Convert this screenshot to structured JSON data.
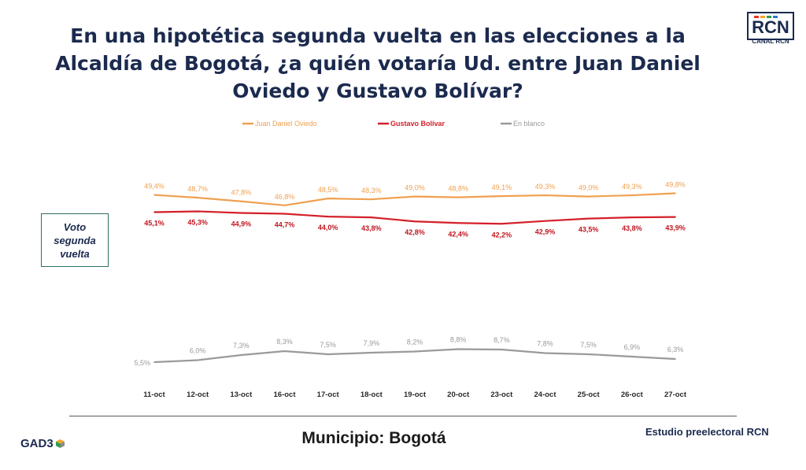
{
  "title": "En una hipotética segunda vuelta en las elecciones a la Alcaldía de Bogotá, ¿a quién votaría Ud. entre Juan Daniel Oviedo y Gustavo Bolívar?",
  "logo": {
    "text": "CANAL RCN",
    "icon": "rcn-logo-icon"
  },
  "row_label": "Voto segunda vuelta",
  "footer": {
    "gad3": "GAD3",
    "municipio": "Municipio: Bogotá",
    "estudio": "Estudio preelectoral RCN"
  },
  "chart_data": {
    "type": "line",
    "x": [
      "11-oct",
      "12-oct",
      "13-oct",
      "16-oct",
      "17-oct",
      "18-oct",
      "19-oct",
      "20-oct",
      "23-oct",
      "24-oct",
      "25-oct",
      "26-oct",
      "27-oct"
    ],
    "series": [
      {
        "name": "Juan Daniel Oviedo",
        "color": "#f0a050",
        "values": [
          49.4,
          48.7,
          47.8,
          46.8,
          48.5,
          48.3,
          49.0,
          48.8,
          49.1,
          49.3,
          49.0,
          49.3,
          49.8
        ],
        "labels": [
          "49,4%",
          "48,7%",
          "47,8%",
          "46,8%",
          "48,5%",
          "48,3%",
          "49,0%",
          "48,8%",
          "49,1%",
          "49,3%",
          "49,0%",
          "49,3%",
          "49,8%"
        ]
      },
      {
        "name": "Gustavo Bolívar",
        "color": "#d4202a",
        "values": [
          45.1,
          45.3,
          44.9,
          44.7,
          44.0,
          43.8,
          42.8,
          42.4,
          42.2,
          42.9,
          43.5,
          43.8,
          43.9
        ],
        "labels": [
          "45,1%",
          "45,3%",
          "44,9%",
          "44,7%",
          "44,0%",
          "43,8%",
          "42,8%",
          "42,4%",
          "42,2%",
          "42,9%",
          "43,5%",
          "43,8%",
          "43,9%"
        ]
      },
      {
        "name": "En blanco",
        "color": "#9a9a9a",
        "values": [
          5.5,
          6.0,
          7.3,
          8.3,
          7.5,
          7.9,
          8.2,
          8.8,
          8.7,
          7.8,
          7.5,
          6.9,
          6.3
        ],
        "labels": [
          "5,5%",
          "6,0%",
          "7,3%",
          "8,3%",
          "7,5%",
          "7,9%",
          "8,2%",
          "8,8%",
          "8,7%",
          "7,8%",
          "7,5%",
          "6,9%",
          "6,3%"
        ]
      }
    ],
    "legend_position": "top",
    "grid": false,
    "axis_line": false
  }
}
